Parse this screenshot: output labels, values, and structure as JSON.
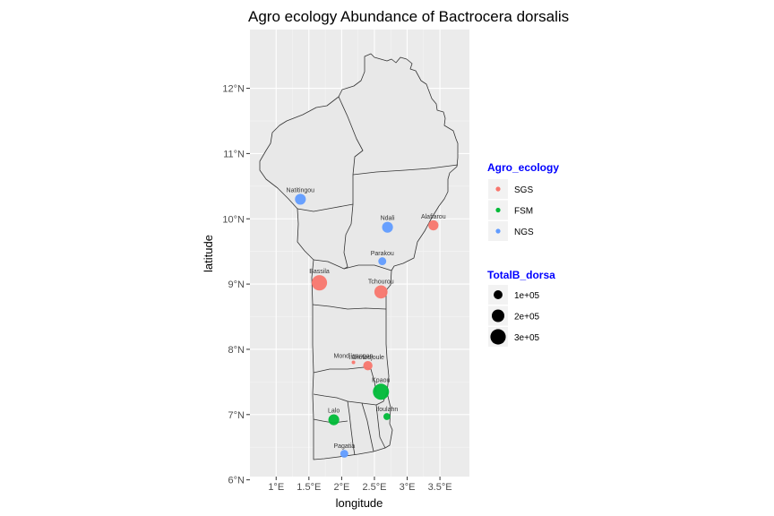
{
  "chart_data": {
    "type": "scatter",
    "title": "Agro ecology Abundance of Bactrocera dorsalis",
    "xlabel": "longitude",
    "ylabel": "latitude",
    "xlim": [
      0.6,
      3.95
    ],
    "ylim": [
      6.05,
      12.9
    ],
    "x_ticks": [
      {
        "value": 1.0,
        "label": "1°E"
      },
      {
        "value": 1.5,
        "label": "1.5°E"
      },
      {
        "value": 2.0,
        "label": "2°E"
      },
      {
        "value": 2.5,
        "label": "2.5°E"
      },
      {
        "value": 3.0,
        "label": "3°E"
      },
      {
        "value": 3.5,
        "label": "3.5°E"
      }
    ],
    "y_ticks": [
      {
        "value": 6,
        "label": "6°N"
      },
      {
        "value": 7,
        "label": "7°N"
      },
      {
        "value": 8,
        "label": "8°N"
      },
      {
        "value": 9,
        "label": "9°N"
      },
      {
        "value": 10,
        "label": "10°N"
      },
      {
        "value": 11,
        "label": "11°N"
      },
      {
        "value": 12,
        "label": "12°N"
      }
    ],
    "grid": true,
    "legend_position": "right",
    "colors": {
      "SGS": "#f8766d",
      "FSM": "#00ba38",
      "NGS": "#619cff"
    },
    "points": [
      {
        "name": "Natitingou",
        "lon": 1.37,
        "lat": 10.3,
        "agro_ecology": "NGS",
        "total": 150000
      },
      {
        "name": "Ndali",
        "lon": 2.7,
        "lat": 9.87,
        "agro_ecology": "NGS",
        "total": 150000
      },
      {
        "name": "Alafiarou",
        "lon": 3.4,
        "lat": 9.9,
        "agro_ecology": "SGS",
        "total": 130000
      },
      {
        "name": "Parakou",
        "lon": 2.62,
        "lat": 9.35,
        "agro_ecology": "NGS",
        "total": 80000
      },
      {
        "name": "Bassila",
        "lon": 1.66,
        "lat": 9.02,
        "agro_ecology": "SGS",
        "total": 300000
      },
      {
        "name": "Tchourou",
        "lon": 2.6,
        "lat": 8.88,
        "agro_ecology": "SGS",
        "total": 220000
      },
      {
        "name": "Mondjigangan",
        "lon": 2.18,
        "lat": 7.8,
        "agro_ecology": "SGS",
        "total": 5000
      },
      {
        "name": "Akofodjoule",
        "lon": 2.4,
        "lat": 7.75,
        "agro_ecology": "SGS",
        "total": 110000
      },
      {
        "name": "Kpaou",
        "lon": 2.6,
        "lat": 7.35,
        "agro_ecology": "FSM",
        "total": 330000
      },
      {
        "name": "Lalo",
        "lon": 1.88,
        "lat": 6.92,
        "agro_ecology": "FSM",
        "total": 150000
      },
      {
        "name": "Ifoulahn",
        "lon": 2.69,
        "lat": 6.97,
        "agro_ecology": "FSM",
        "total": 60000
      },
      {
        "name": "Pagatia",
        "lon": 2.04,
        "lat": 6.4,
        "agro_ecology": "NGS",
        "total": 80000
      }
    ],
    "legend_color": {
      "title": "Agro_ecology",
      "entries": [
        {
          "label": "SGS",
          "key": "SGS"
        },
        {
          "label": "FSM",
          "key": "FSM"
        },
        {
          "label": "NGS",
          "key": "NGS"
        }
      ]
    },
    "legend_size": {
      "title": "TotalB_dorsa",
      "entries": [
        {
          "label": "1e+05",
          "value": 100000
        },
        {
          "label": "2e+05",
          "value": 200000
        },
        {
          "label": "3e+05",
          "value": 300000
        }
      ]
    }
  }
}
